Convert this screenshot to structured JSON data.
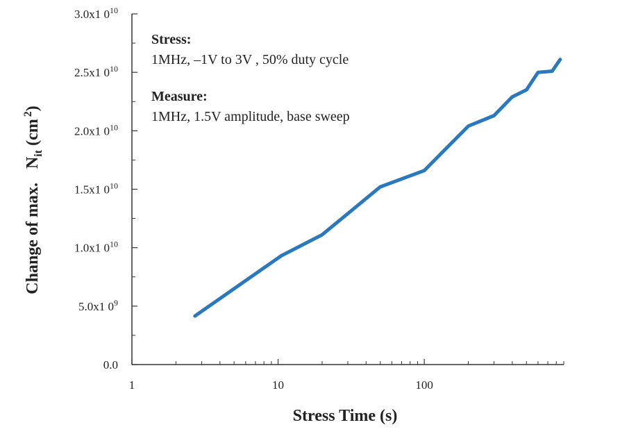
{
  "chart_data": {
    "type": "line",
    "title": "",
    "xlabel": "Stress  Time (s)",
    "ylabel": {
      "prefix": "Change of max.",
      "symbol": "N",
      "subscript": "it",
      "unit_open": "(cm",
      "unit_sup": "2",
      "unit_close": ")"
    },
    "xscale": "log",
    "xlim": [
      1,
      900
    ],
    "ylim": [
      0,
      30000000000
    ],
    "x_ticks": [
      {
        "value": 1,
        "label": "1"
      },
      {
        "value": 10,
        "label": "10"
      },
      {
        "value": 100,
        "label": "100"
      }
    ],
    "y_ticks": [
      {
        "value": 0,
        "mant": "0.0",
        "exp": ""
      },
      {
        "value": 5000000000,
        "mant": "5.0x1 0",
        "exp": "9"
      },
      {
        "value": 10000000000,
        "mant": "1.0x1 0",
        "exp": "10"
      },
      {
        "value": 15000000000,
        "mant": "1.5x1 0",
        "exp": "10"
      },
      {
        "value": 20000000000,
        "mant": "2.0x1 0",
        "exp": "10"
      },
      {
        "value": 25000000000,
        "mant": "2.5x1 0",
        "exp": "10"
      },
      {
        "value": 30000000000,
        "mant": "3.0x1 0",
        "exp": "10"
      }
    ],
    "series": [
      {
        "name": "max Nit change",
        "color": "#2a78bd",
        "x": [
          2.7,
          10.5,
          20,
          50,
          100,
          200,
          300,
          400,
          500,
          600,
          750,
          850
        ],
        "y": [
          4150000000,
          9300000000,
          11100000000,
          15200000000,
          16600000000,
          20400000000,
          21300000000,
          22900000000,
          23500000000,
          25000000000,
          25100000000,
          26100000000
        ]
      }
    ],
    "annotations": [
      {
        "title": "Stress:",
        "text": "1MHz, –1V to 3V , 50% duty cycle"
      },
      {
        "title": "Measure:",
        "text": "1MHz, 1.5V amplitude, base sweep"
      }
    ],
    "grid": false,
    "legend": "none"
  }
}
